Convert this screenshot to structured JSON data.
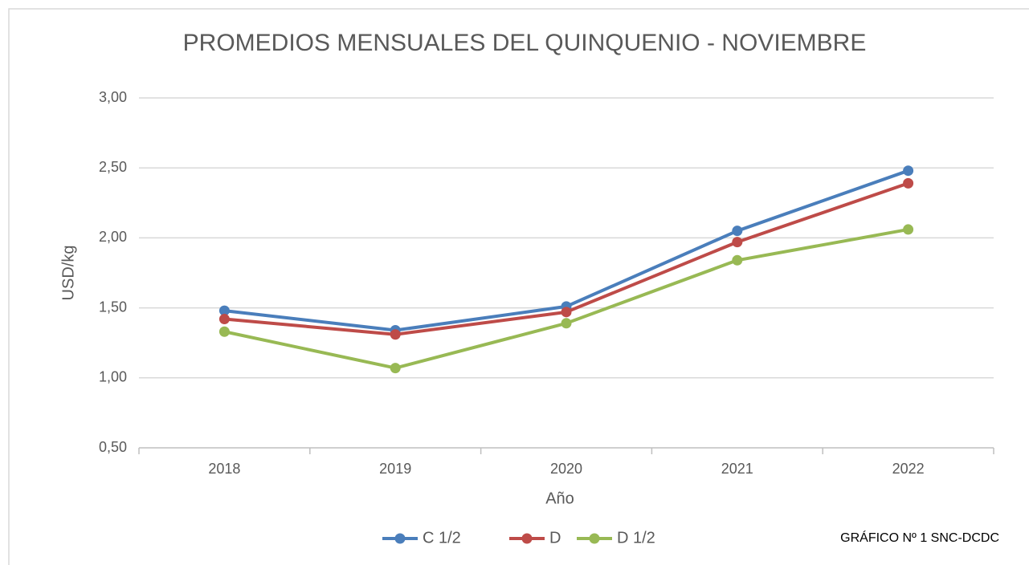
{
  "chart_data": {
    "type": "line",
    "title": "PROMEDIOS MENSUALES DEL QUINQUENIO - NOVIEMBRE",
    "x_label": "Año",
    "y_label": "USD/kg",
    "annotation": "GRÁFICO Nº 1 SNC-DCDC",
    "categories": [
      "2018",
      "2019",
      "2020",
      "2021",
      "2022"
    ],
    "series": [
      {
        "name": "C 1/2",
        "color": "#4a7ebb",
        "values": [
          1.48,
          1.34,
          1.51,
          2.05,
          2.48
        ]
      },
      {
        "name": "D",
        "color": "#be4b48",
        "values": [
          1.42,
          1.31,
          1.47,
          1.97,
          2.39
        ]
      },
      {
        "name": "D 1/2",
        "color": "#98b954",
        "values": [
          1.33,
          1.07,
          1.39,
          1.84,
          2.06
        ]
      }
    ],
    "ylim": [
      0.5,
      3.0
    ],
    "yticks": [
      {
        "value": 0.5,
        "label": "0,50"
      },
      {
        "value": 1.0,
        "label": "1,00"
      },
      {
        "value": 1.5,
        "label": "1,50"
      },
      {
        "value": 2.0,
        "label": "2,00"
      },
      {
        "value": 2.5,
        "label": "2,50"
      },
      {
        "value": 3.0,
        "label": "3,00"
      }
    ],
    "grid": true,
    "legend": "bottom"
  }
}
